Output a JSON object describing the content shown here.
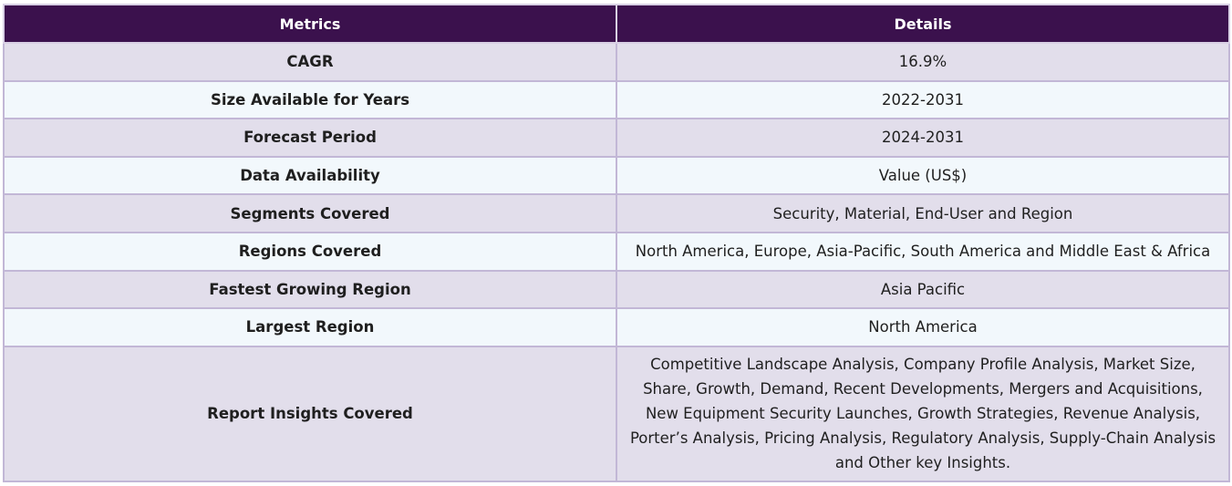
{
  "table": {
    "headers": [
      "Metrics",
      "Details"
    ],
    "rows": [
      {
        "metric": "CAGR",
        "detail": "16.9%"
      },
      {
        "metric": "Size Available for Years",
        "detail": "2022-2031"
      },
      {
        "metric": "Forecast Period",
        "detail": "2024-2031"
      },
      {
        "metric": "Data Availability",
        "detail": "Value (US$)"
      },
      {
        "metric": "Segments Covered",
        "detail": "Security, Material, End-User and Region"
      },
      {
        "metric": "Regions Covered",
        "detail": "North America, Europe, Asia-Pacific, South America and Middle East & Africa"
      },
      {
        "metric": "Fastest Growing Region",
        "detail": "Asia Pacific"
      },
      {
        "metric": "Largest Region",
        "detail": "North America"
      },
      {
        "metric": "Report Insights Covered",
        "detail": "Competitive Landscape Analysis, Company Profile Analysis, Market Size, Share, Growth, Demand, Recent Developments, Mergers and Acquisitions, New Equipment Security Launches, Growth Strategies, Revenue Analysis, Porter’s Analysis, Pricing Analysis, Regulatory Analysis, Supply-Chain Analysis and Other key Insights."
      }
    ]
  },
  "colors": {
    "header_bg": "#3b114d",
    "header_text": "#ffffff",
    "row_odd_bg": "#e2deeb",
    "row_even_bg": "#f2f8fc",
    "border": "#c2b7d6"
  }
}
